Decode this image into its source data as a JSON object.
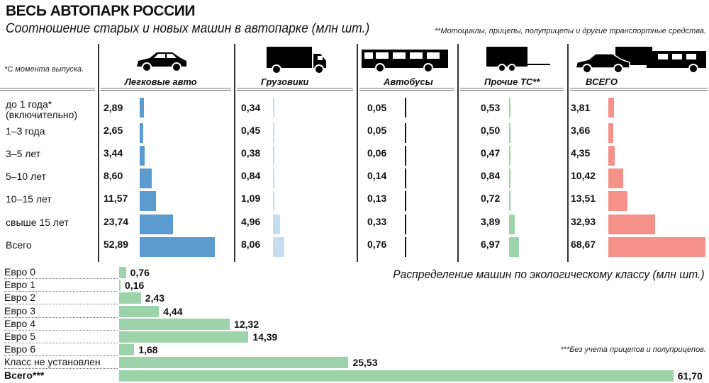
{
  "title": "ВЕСЬ АВТОПАРК РОССИИ",
  "subtitle": "Соотношение старых и новых машин в автопарке (млн шт.)",
  "note_other": "**Мотоциклы, прицепы, полуприцепы и другие транспортные средства.",
  "note_age": "*С момента выпуска.",
  "eco_title": "Распределение машин по экологическому классу (млн шт.)",
  "note_eco": "***Без учета прицепов и полуприцепов.",
  "colors": {
    "cars": "#5b9bd0",
    "trucks": "#c6dcef",
    "buses": "#111111",
    "other": "#9dd3aa",
    "total": "#f4928a",
    "eco": "#9dd3aa"
  },
  "chart_data": [
    {
      "type": "table",
      "title": "Соотношение старых и новых машин в автопарке (млн шт.)",
      "categories": [
        "до 1 года* (включительно)",
        "1–3 года",
        "3–5 лет",
        "5–10 лет",
        "10–15 лет",
        "свыше 15 лет",
        "Всего"
      ],
      "series": [
        {
          "name": "Легковые авто",
          "icon": "car-icon",
          "values": [
            "2,89",
            "2,65",
            "3,44",
            "8,60",
            "11,57",
            "23,74",
            "52,89"
          ]
        },
        {
          "name": "Грузовики",
          "icon": "truck-icon",
          "values": [
            "0,34",
            "0,45",
            "0,38",
            "0,84",
            "1,09",
            "4,96",
            "8,06"
          ]
        },
        {
          "name": "Автобусы",
          "icon": "bus-icon",
          "values": [
            "0,05",
            "0,05",
            "0,06",
            "0,14",
            "0,13",
            "0,33",
            "0,76"
          ]
        },
        {
          "name": "Прочие ТС**",
          "icon": "trailer-icon",
          "values": [
            "0,53",
            "0,50",
            "0,47",
            "0,84",
            "0,72",
            "3,89",
            "6,97"
          ]
        },
        {
          "name": "ВСЕГО",
          "icon": "all-vehicles-icon",
          "values": [
            "3,81",
            "3,66",
            "4,35",
            "10,42",
            "13,51",
            "32,93",
            "68,67"
          ]
        }
      ]
    },
    {
      "type": "bar",
      "title": "Распределение машин по экологическому классу (млн шт.)",
      "categories": [
        "Евро 0",
        "Евро 1",
        "Евро 2",
        "Евро 3",
        "Евро 4",
        "Евро 5",
        "Евро 6",
        "Класс не установлен",
        "Всего***"
      ],
      "values": [
        "0,76",
        "0,16",
        "2,43",
        "4,44",
        "12,32",
        "14,39",
        "1,68",
        "25,53",
        "61,70"
      ]
    }
  ]
}
